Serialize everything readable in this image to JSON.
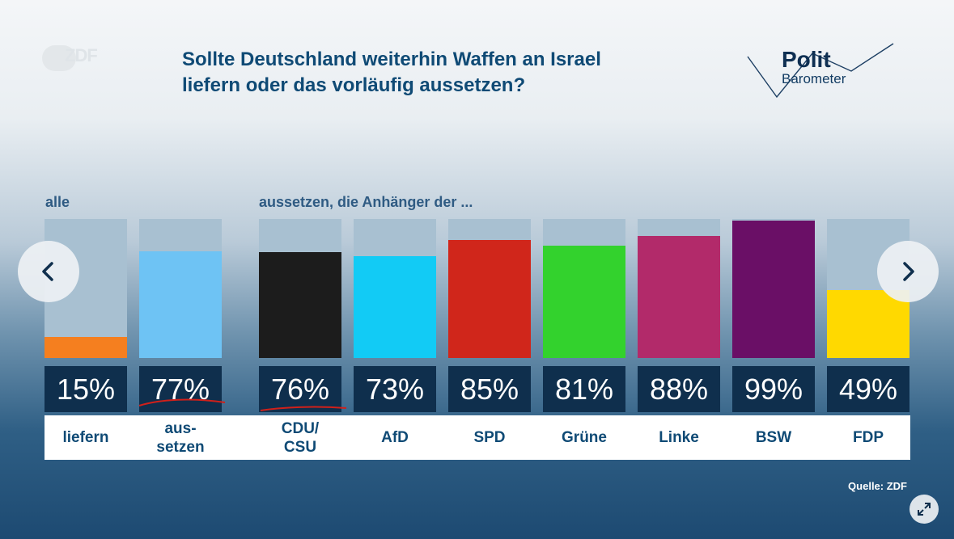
{
  "header": {
    "logo_text": "ZDF",
    "title_line1": "Sollte Deutschland weiterhin Waffen an Israel",
    "title_line2": "liefern oder das vorläufig aussetzen?",
    "brand_line1": "Polit",
    "brand_line2": "Barometer"
  },
  "chart_data": {
    "type": "bar",
    "title": "Sollte Deutschland weiterhin Waffen an Israel liefern oder das vorläufig aussetzen?",
    "ylim": [
      0,
      100
    ],
    "groups": [
      {
        "label": "alle",
        "categories": [
          "liefern",
          "aus-\nsetzen"
        ],
        "values": [
          15,
          77
        ],
        "value_labels": [
          "15%",
          "77%"
        ],
        "colors": [
          "#f57f1f",
          "#6ec3f4"
        ]
      },
      {
        "label": "aussetzen, die Anhänger der ...",
        "categories": [
          "CDU/\nCSU",
          "AfD",
          "SPD",
          "Grüne",
          "Linke",
          "BSW",
          "FDP"
        ],
        "values": [
          76,
          73,
          85,
          81,
          88,
          99,
          49
        ],
        "value_labels": [
          "76%",
          "73%",
          "85%",
          "81%",
          "88%",
          "99%",
          "49%"
        ],
        "colors": [
          "#1c1c1c",
          "#12cbf5",
          "#d0261b",
          "#33d22d",
          "#b22a6a",
          "#6a0f66",
          "#ffd900"
        ]
      }
    ]
  },
  "nav": {
    "prev_icon": "chevron-left-icon",
    "next_icon": "chevron-right-icon",
    "expand_icon": "expand-icon"
  },
  "footer": {
    "source": "Quelle: ZDF"
  }
}
